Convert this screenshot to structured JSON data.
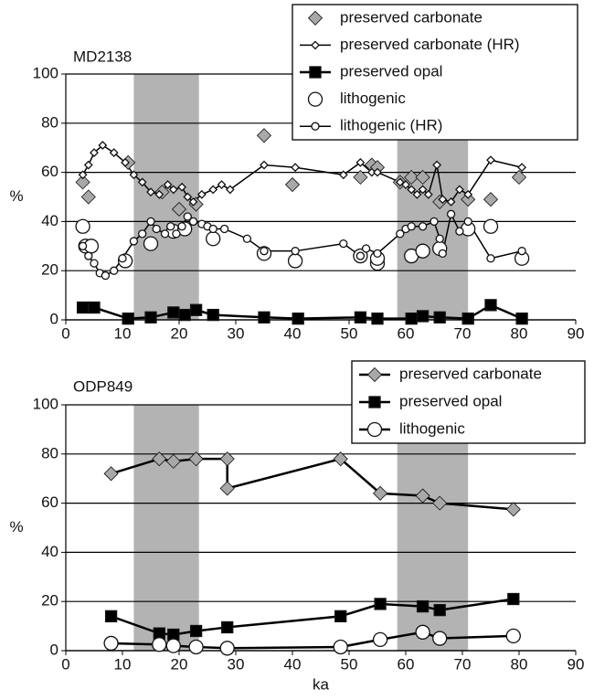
{
  "chart_data": [
    {
      "type": "line",
      "title": "MD2138",
      "ylabel": "%",
      "xlim": [
        0,
        90
      ],
      "ylim": [
        0,
        100
      ],
      "xticks": [
        0,
        10,
        20,
        30,
        40,
        50,
        60,
        70,
        80,
        90
      ],
      "yticks": [
        0,
        20,
        40,
        60,
        80,
        100
      ],
      "grid": true,
      "legend": "upper right",
      "shaded": [
        [
          12,
          23.5
        ],
        [
          58.5,
          71
        ]
      ],
      "series": [
        {
          "name": "preserved carbonate",
          "color": "#a8a8a8",
          "marker": "diamond",
          "line": false,
          "x": [
            3,
            4,
            11,
            17,
            20,
            23,
            35,
            40,
            52,
            54,
            55,
            59,
            61,
            63,
            66,
            71,
            75,
            80
          ],
          "values": [
            56,
            50,
            64,
            52,
            45,
            47,
            75,
            55,
            58,
            63,
            62,
            56,
            58,
            58,
            48,
            49,
            49,
            58
          ]
        },
        {
          "name": "preserved carbonate (HR)",
          "color": "#ffffff",
          "marker": "diamond-small",
          "line": true,
          "x": [
            3,
            4,
            5,
            6.5,
            8.5,
            10.5,
            12,
            13.5,
            15,
            16.5,
            18,
            19,
            20.5,
            21.5,
            22.5,
            24,
            26,
            27.5,
            29,
            35,
            40.5,
            49,
            52,
            54,
            55,
            59,
            60,
            61,
            62,
            63,
            64,
            65.5,
            66.5,
            68,
            69.5,
            71,
            75,
            80.5
          ],
          "values": [
            59,
            63,
            68,
            71,
            68,
            64,
            59,
            56,
            52,
            51,
            55,
            53,
            54,
            50,
            48,
            51,
            53,
            55,
            53,
            63,
            62,
            59,
            64,
            60,
            60,
            56,
            55,
            53,
            51,
            53,
            51,
            63,
            49,
            48,
            53,
            51,
            65,
            62
          ]
        },
        {
          "name": "preserved opal",
          "color": "#000000",
          "marker": "square",
          "line": true,
          "x": [
            3,
            5,
            11,
            15,
            19,
            21,
            23,
            26,
            35,
            41,
            52,
            55,
            61,
            63,
            66,
            71,
            75,
            80.5
          ],
          "values": [
            5,
            5,
            0.5,
            1,
            3,
            2,
            4,
            2,
            1,
            0.5,
            1,
            0.5,
            0.5,
            1.5,
            1,
            0.5,
            6,
            0.5
          ]
        },
        {
          "name": "lithogenic",
          "color": "#ffffff",
          "marker": "circle",
          "line": false,
          "x": [
            3,
            3.5,
            4.5,
            10.5,
            15,
            19,
            21,
            26,
            35,
            40.5,
            52,
            55,
            55,
            61,
            63,
            66,
            71,
            75,
            80.5
          ],
          "values": [
            38,
            30,
            30,
            24,
            31,
            36,
            37,
            33,
            27,
            24,
            26,
            23,
            25,
            26,
            28,
            29,
            37,
            38,
            25
          ]
        },
        {
          "name": "lithogenic (HR)",
          "color": "#ffffff",
          "marker": "circle-small",
          "line": true,
          "x": [
            3,
            4,
            5,
            6,
            7,
            8.5,
            10,
            12,
            13.5,
            15,
            16,
            17.5,
            18.5,
            19.5,
            20.5,
            21.5,
            22.5,
            24,
            25,
            26,
            28,
            32,
            35,
            40.5,
            49,
            52,
            53,
            55,
            59,
            60,
            61,
            63,
            65,
            66,
            66.5,
            68,
            69.5,
            71,
            75,
            80.5
          ],
          "values": [
            30,
            26,
            23,
            19,
            18,
            20,
            25,
            32,
            35,
            40,
            37,
            35,
            38,
            35,
            38,
            42,
            40,
            39,
            38,
            37,
            37,
            33,
            28,
            28,
            31,
            26,
            29,
            27,
            35,
            37,
            38,
            38,
            40,
            33,
            27,
            43,
            36,
            40,
            25,
            28
          ]
        }
      ]
    },
    {
      "type": "line",
      "title": "ODP849",
      "ylabel": "%",
      "xlabel": "ka",
      "xlim": [
        0,
        90
      ],
      "ylim": [
        0,
        100
      ],
      "xticks": [
        0,
        10,
        20,
        30,
        40,
        50,
        60,
        70,
        80,
        90
      ],
      "yticks": [
        0,
        20,
        40,
        60,
        80,
        100
      ],
      "grid": true,
      "legend": "upper right",
      "shaded": [
        [
          12,
          23.5
        ],
        [
          58.5,
          71
        ]
      ],
      "series": [
        {
          "name": "preserved carbonate",
          "color": "#a8a8a8",
          "marker": "diamond",
          "line": true,
          "x": [
            8,
            16.5,
            19,
            23,
            28.5,
            28.5,
            48.5,
            55.5,
            63,
            66,
            79
          ],
          "values": [
            72,
            78,
            77,
            78,
            78,
            66,
            78,
            64,
            63,
            60,
            57.5
          ]
        },
        {
          "name": "preserved opal",
          "color": "#000000",
          "marker": "square",
          "line": true,
          "x": [
            8,
            16.5,
            19,
            23,
            28.5,
            48.5,
            55.5,
            63,
            66,
            79
          ],
          "values": [
            14,
            7,
            6.5,
            8,
            9.5,
            14,
            19,
            18,
            16.5,
            21
          ]
        },
        {
          "name": "lithogenic",
          "color": "#ffffff",
          "marker": "circle",
          "line": true,
          "x": [
            8,
            16.5,
            19,
            23,
            28.5,
            48.5,
            55.5,
            63,
            66,
            79
          ],
          "values": [
            3,
            2.5,
            2,
            1.5,
            1,
            1.5,
            4.5,
            7.5,
            5,
            6
          ]
        }
      ]
    }
  ]
}
